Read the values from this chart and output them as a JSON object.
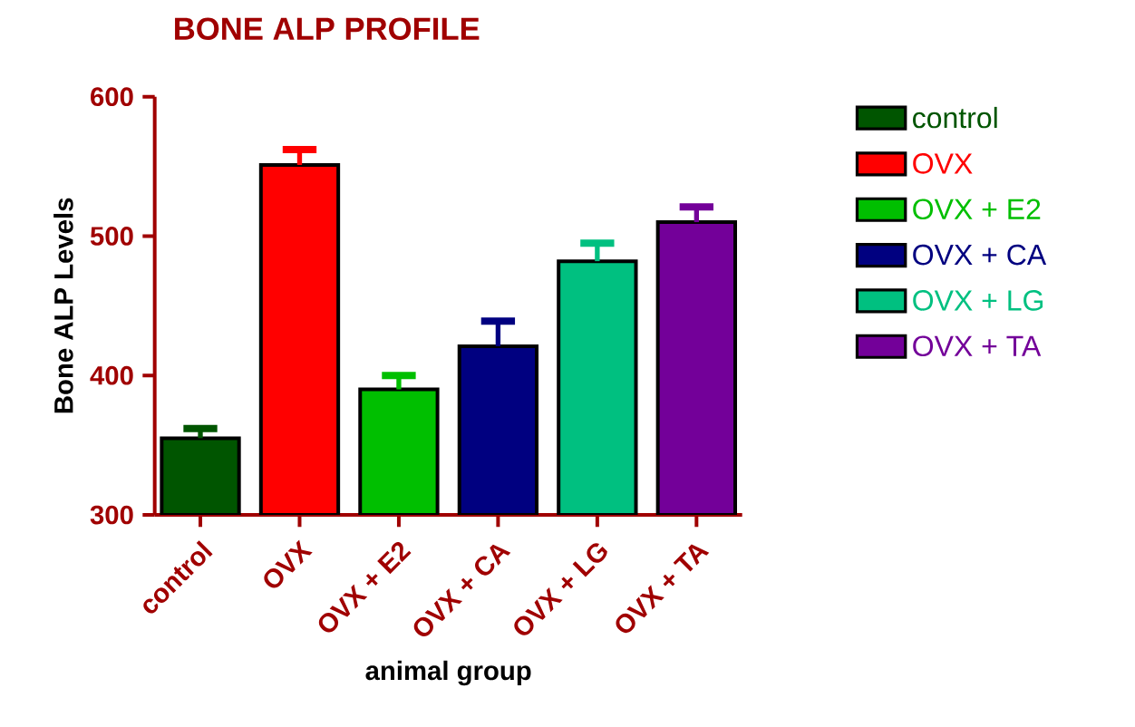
{
  "chart_data": {
    "type": "bar",
    "title": "BONE ALP PROFILE",
    "xlabel": "animal group",
    "ylabel": "Bone ALP Levels",
    "categories": [
      "control",
      "OVX",
      "OVX + E2",
      "OVX + CA",
      "OVX + LG",
      "OVX + TA"
    ],
    "series": [
      {
        "name": "control",
        "color": "#005500",
        "values": [
          355,
          null,
          null,
          null,
          null,
          null
        ],
        "errors": [
          7,
          null,
          null,
          null,
          null,
          null
        ]
      },
      {
        "name": "OVX",
        "color": "#ff0000",
        "values": [
          null,
          551,
          null,
          null,
          null,
          null
        ],
        "errors": [
          null,
          11,
          null,
          null,
          null,
          null
        ]
      },
      {
        "name": "OVX + E2",
        "color": "#00bf00",
        "values": [
          null,
          null,
          390,
          null,
          null,
          null
        ],
        "errors": [
          null,
          null,
          10,
          null,
          null,
          null
        ]
      },
      {
        "name": "OVX + CA",
        "color": "#000080",
        "values": [
          null,
          null,
          null,
          421,
          null,
          null
        ],
        "errors": [
          null,
          null,
          null,
          18,
          null,
          null
        ]
      },
      {
        "name": "OVX + LG",
        "color": "#00c080",
        "values": [
          null,
          null,
          null,
          null,
          482,
          null
        ],
        "errors": [
          null,
          null,
          null,
          null,
          13,
          null
        ]
      },
      {
        "name": "OVX + TA",
        "color": "#730099",
        "values": [
          null,
          null,
          null,
          null,
          null,
          510
        ],
        "errors": [
          null,
          null,
          null,
          null,
          null,
          11
        ]
      }
    ],
    "ylim": [
      300,
      600
    ],
    "yticks": [
      300,
      400,
      500,
      600
    ],
    "legend": "right"
  }
}
